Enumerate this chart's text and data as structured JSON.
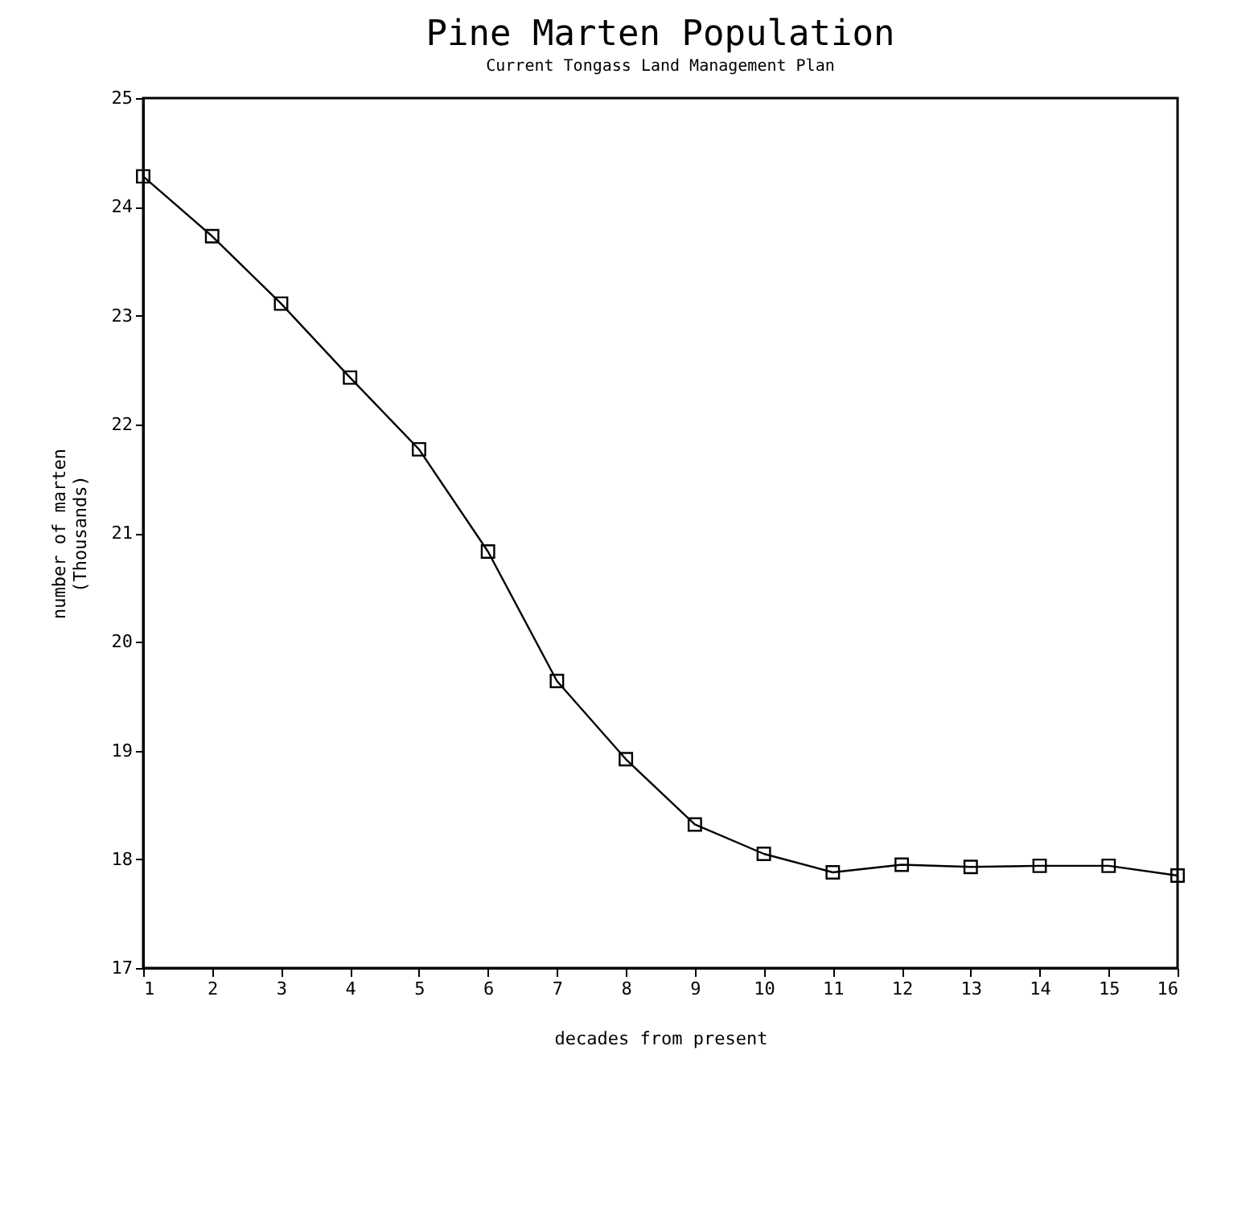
{
  "chart_data": {
    "type": "line",
    "title": "Pine Marten Population",
    "subtitle": "Current Tongass Land Management Plan",
    "xlabel": "decades from present",
    "ylabel": "number of marten\n(Thousands)",
    "x": [
      1,
      2,
      3,
      4,
      5,
      6,
      7,
      8,
      9,
      10,
      11,
      12,
      13,
      14,
      15,
      16
    ],
    "series": [
      {
        "color": "#000000",
        "values": [
          24.28,
          23.73,
          23.11,
          22.43,
          21.77,
          20.83,
          19.64,
          18.92,
          18.32,
          18.05,
          17.88,
          17.95,
          17.93,
          17.94,
          17.94,
          17.85
        ]
      }
    ],
    "xlim": [
      1,
      16
    ],
    "xticks": [
      1,
      2,
      3,
      4,
      5,
      6,
      7,
      8,
      9,
      10,
      11,
      12,
      13,
      14,
      15,
      16
    ],
    "ylim": [
      17,
      25
    ],
    "yticks": [
      17,
      18,
      19,
      20,
      21,
      22,
      23,
      24,
      25
    ],
    "grid": false,
    "legend": false,
    "marker": "square",
    "line_style": "solid"
  }
}
